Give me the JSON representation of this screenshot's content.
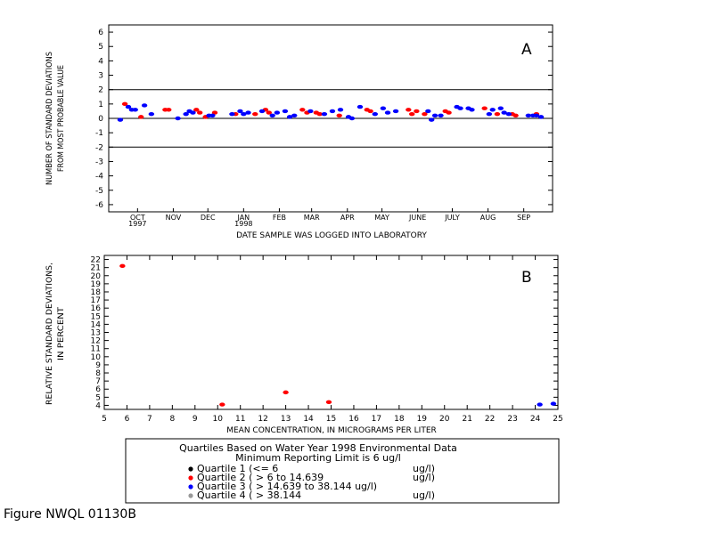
{
  "figure_label": "Figure NWQL 01130B",
  "legend": {
    "title_line1": "Quartiles Based on Water Year 1998 Environmental Data",
    "title_line2": "Minimum Reporting Limit is 6 ug/l",
    "entries": [
      {
        "label": "Quartile 1 (<= 6",
        "unit": "ug/l)",
        "color": "#000000"
      },
      {
        "label": "Quartile 2 ( > 6 to 14.639",
        "unit": "ug/l)",
        "color": "#ff0000"
      },
      {
        "label": "Quartile 3 ( > 14.639 to 38.144 ug/l)",
        "unit": "",
        "color": "#0000ff"
      },
      {
        "label": "Quartile 4 ( > 38.144",
        "unit": "ug/l)",
        "color": "#999999"
      }
    ]
  },
  "chart_data": [
    {
      "type": "scatter",
      "panel_label": "A",
      "ylabel_line1": "NUMBER OF STANDARD DEVIATIONS",
      "ylabel_line2": "FROM MOST PROBABLE VALUE",
      "xlabel": "DATE SAMPLE WAS LOGGED INTO LABORATORY",
      "ylim": [
        -6.5,
        6.5
      ],
      "yticks": [
        -6,
        -5,
        -4,
        -3,
        -2,
        -1,
        0,
        1,
        2,
        3,
        4,
        5,
        6
      ],
      "reference_lines": [
        2,
        0,
        -2
      ],
      "xlim": [
        "1997-09-20",
        "1998-10-10"
      ],
      "month_labels": [
        {
          "date": "1997-10-15",
          "label": "OCT"
        },
        {
          "date": "1997-11-15",
          "label": "NOV"
        },
        {
          "date": "1997-12-15",
          "label": "DEC"
        },
        {
          "date": "1998-01-15",
          "label": "JAN"
        },
        {
          "date": "1998-02-15",
          "label": "FEB"
        },
        {
          "date": "1998-03-15",
          "label": "MAR"
        },
        {
          "date": "1998-04-15",
          "label": "APR"
        },
        {
          "date": "1998-05-15",
          "label": "MAY"
        },
        {
          "date": "1998-06-15",
          "label": "JUNE"
        },
        {
          "date": "1998-07-15",
          "label": "JULY"
        },
        {
          "date": "1998-08-15",
          "label": "AUG"
        },
        {
          "date": "1998-09-15",
          "label": "SEP"
        }
      ],
      "year_labels": [
        {
          "date": "1997-10-15",
          "label": "1997"
        },
        {
          "date": "1998-01-15",
          "label": "1998"
        }
      ],
      "series": [
        {
          "color": "#ff0000",
          "points": [
            [
              "1997-10-04",
              1.0
            ],
            [
              "1997-10-18",
              0.1
            ],
            [
              "1997-11-08",
              0.6
            ],
            [
              "1997-11-11",
              0.6
            ],
            [
              "1997-12-05",
              0.6
            ],
            [
              "1997-12-08",
              0.4
            ],
            [
              "1997-12-13",
              0.1
            ],
            [
              "1997-12-21",
              0.4
            ],
            [
              "1998-01-08",
              0.3
            ],
            [
              "1998-01-25",
              0.3
            ],
            [
              "1998-02-03",
              0.6
            ],
            [
              "1998-02-06",
              0.4
            ],
            [
              "1998-03-07",
              0.6
            ],
            [
              "1998-03-11",
              0.4
            ],
            [
              "1998-03-19",
              0.4
            ],
            [
              "1998-03-22",
              0.3
            ],
            [
              "1998-04-08",
              0.2
            ],
            [
              "1998-05-02",
              0.6
            ],
            [
              "1998-05-05",
              0.5
            ],
            [
              "1998-06-07",
              0.6
            ],
            [
              "1998-06-10",
              0.3
            ],
            [
              "1998-06-14",
              0.5
            ],
            [
              "1998-06-21",
              0.3
            ],
            [
              "1998-07-09",
              0.5
            ],
            [
              "1998-07-12",
              0.4
            ],
            [
              "1998-08-12",
              0.7
            ],
            [
              "1998-08-23",
              0.3
            ],
            [
              "1998-09-05",
              0.3
            ],
            [
              "1998-09-08",
              0.2
            ],
            [
              "1998-09-26",
              0.3
            ]
          ]
        },
        {
          "color": "#0000ff",
          "points": [
            [
              "1997-09-30",
              -0.1
            ],
            [
              "1997-10-07",
              0.8
            ],
            [
              "1997-10-10",
              0.6
            ],
            [
              "1997-10-13",
              0.6
            ],
            [
              "1997-10-21",
              0.9
            ],
            [
              "1997-10-27",
              0.3
            ],
            [
              "1997-11-19",
              0.0
            ],
            [
              "1997-11-26",
              0.3
            ],
            [
              "1997-11-29",
              0.5
            ],
            [
              "1997-12-02",
              0.4
            ],
            [
              "1997-12-16",
              0.2
            ],
            [
              "1997-12-19",
              0.2
            ],
            [
              "1998-01-05",
              0.3
            ],
            [
              "1998-01-12",
              0.5
            ],
            [
              "1998-01-15",
              0.3
            ],
            [
              "1998-01-19",
              0.4
            ],
            [
              "1998-01-31",
              0.5
            ],
            [
              "1998-02-09",
              0.2
            ],
            [
              "1998-02-13",
              0.4
            ],
            [
              "1998-02-20",
              0.5
            ],
            [
              "1998-02-24",
              0.1
            ],
            [
              "1998-02-28",
              0.2
            ],
            [
              "1998-03-14",
              0.5
            ],
            [
              "1998-03-26",
              0.3
            ],
            [
              "1998-04-02",
              0.5
            ],
            [
              "1998-04-09",
              0.6
            ],
            [
              "1998-04-16",
              0.1
            ],
            [
              "1998-04-19",
              0.0
            ],
            [
              "1998-04-26",
              0.8
            ],
            [
              "1998-05-09",
              0.3
            ],
            [
              "1998-05-16",
              0.7
            ],
            [
              "1998-05-20",
              0.4
            ],
            [
              "1998-05-27",
              0.5
            ],
            [
              "1998-06-24",
              0.5
            ],
            [
              "1998-06-27",
              -0.1
            ],
            [
              "1998-06-30",
              0.2
            ],
            [
              "1998-07-05",
              0.2
            ],
            [
              "1998-07-19",
              0.8
            ],
            [
              "1998-07-22",
              0.7
            ],
            [
              "1998-07-29",
              0.7
            ],
            [
              "1998-08-01",
              0.6
            ],
            [
              "1998-08-16",
              0.3
            ],
            [
              "1998-08-19",
              0.6
            ],
            [
              "1998-08-26",
              0.7
            ],
            [
              "1998-08-29",
              0.4
            ],
            [
              "1998-09-02",
              0.3
            ],
            [
              "1998-09-19",
              0.2
            ],
            [
              "1998-09-23",
              0.2
            ],
            [
              "1998-09-26",
              0.2
            ],
            [
              "1998-09-30",
              0.1
            ]
          ]
        }
      ]
    },
    {
      "type": "scatter",
      "panel_label": "B",
      "ylabel_line1": "RELATIVE STANDARD DEVIATIONS,",
      "ylabel_line2": "IN PERCENT",
      "xlabel": "MEAN CONCENTRATION, IN MICROGRAMS PER LITER",
      "xlim": [
        5,
        25
      ],
      "xticks": [
        5,
        6,
        7,
        8,
        9,
        10,
        11,
        12,
        13,
        14,
        15,
        16,
        17,
        18,
        19,
        20,
        21,
        22,
        23,
        24,
        25
      ],
      "ylim": [
        3.5,
        22.5
      ],
      "yticks": [
        4,
        5,
        6,
        7,
        8,
        9,
        10,
        11,
        12,
        13,
        14,
        15,
        16,
        17,
        18,
        19,
        20,
        21,
        22
      ],
      "series": [
        {
          "color": "#ff0000",
          "points": [
            [
              5.8,
              21.2
            ],
            [
              10.2,
              4.1
            ],
            [
              13.0,
              5.6
            ],
            [
              14.9,
              4.4
            ]
          ]
        },
        {
          "color": "#0000ff",
          "points": [
            [
              24.2,
              4.1
            ],
            [
              24.8,
              4.2
            ]
          ]
        }
      ]
    }
  ]
}
